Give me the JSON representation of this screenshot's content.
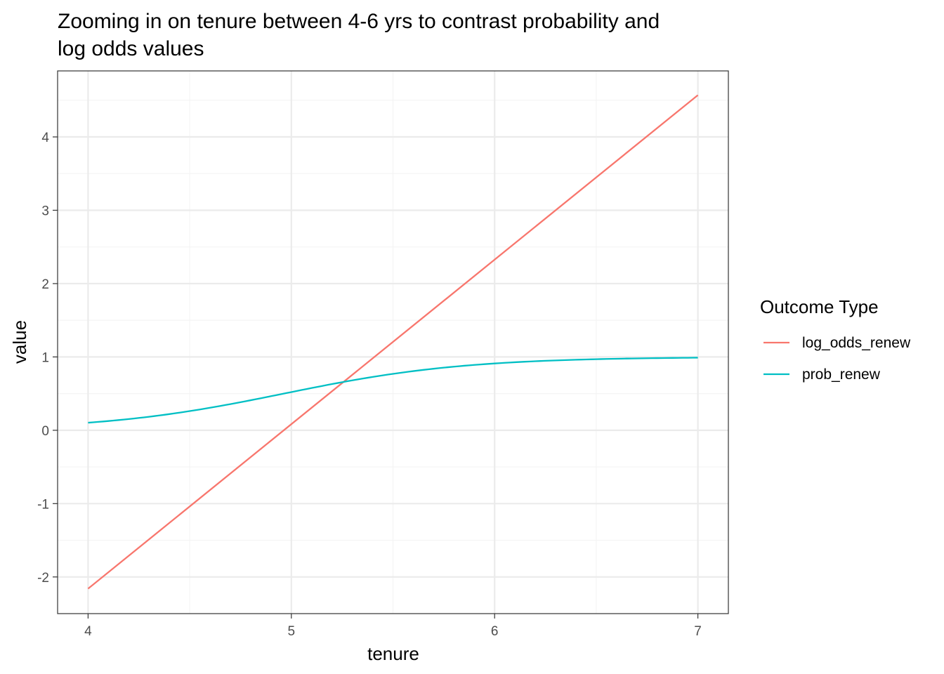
{
  "chart_data": {
    "type": "line",
    "title": "Zooming in on tenure between 4-6 yrs to contrast probability and log odds values",
    "title_lines": [
      "Zooming in on tenure between 4-6 yrs to contrast probability and",
      "log odds values"
    ],
    "xlabel": "tenure",
    "ylabel": "value",
    "xlim": [
      3.85,
      7.15
    ],
    "ylim": [
      -2.5,
      4.9
    ],
    "x_ticks": [
      4,
      5,
      6,
      7
    ],
    "x_tick_labels": [
      "4",
      "5",
      "6",
      "7"
    ],
    "y_ticks": [
      -2,
      -1,
      0,
      1,
      2,
      3,
      4
    ],
    "y_tick_labels": [
      "-2",
      "-1",
      "0",
      "1",
      "2",
      "3",
      "4"
    ],
    "grid": true,
    "legend": {
      "title": "Outcome Type",
      "position": "right"
    },
    "x": [
      4.0,
      4.25,
      4.5,
      4.75,
      5.0,
      5.25,
      5.5,
      5.75,
      6.0,
      6.25,
      6.5,
      6.75,
      7.0
    ],
    "series": [
      {
        "name": "log_odds_renew",
        "color": "#F8766D",
        "values": [
          -2.16,
          -1.6,
          -1.04,
          -0.48,
          0.08,
          0.64,
          1.2,
          1.76,
          2.32,
          2.88,
          3.44,
          4.0,
          4.57
        ]
      },
      {
        "name": "prob_renew",
        "color": "#00BFC4",
        "values": [
          0.103,
          0.168,
          0.261,
          0.382,
          0.52,
          0.655,
          0.769,
          0.853,
          0.91,
          0.947,
          0.969,
          0.982,
          0.99
        ]
      }
    ],
    "colors": {
      "panel_border": "#333333",
      "grid_major": "#ebebeb",
      "grid_minor": "#f4f4f4",
      "tick_text": "#4d4d4d",
      "background": "#ffffff"
    }
  }
}
